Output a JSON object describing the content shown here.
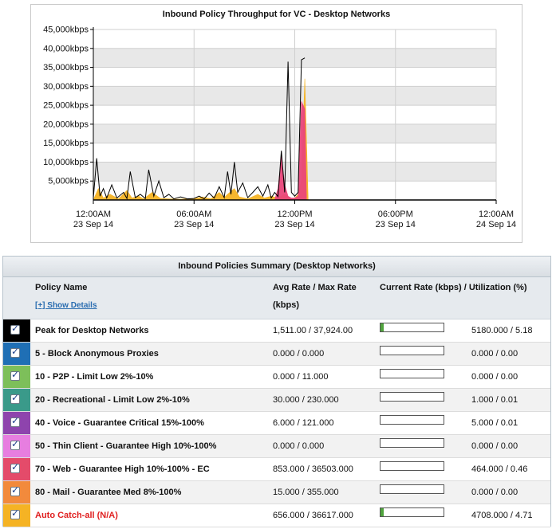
{
  "chart": {
    "title": "Inbound Policy Throughput for VC - Desktop Networks",
    "y_ticks": [
      "5,000kbps",
      "10,000kbps",
      "15,000kbps",
      "20,000kbps",
      "25,000kbps",
      "30,000kbps",
      "35,000kbps",
      "40,000kbps",
      "45,000kbps"
    ],
    "x_ticks": [
      {
        "time": "12:00AM",
        "date": "23 Sep 14"
      },
      {
        "time": "06:00AM",
        "date": "23 Sep 14"
      },
      {
        "time": "12:00PM",
        "date": "23 Sep 14"
      },
      {
        "time": "06:00PM",
        "date": "23 Sep 14"
      },
      {
        "time": "12:00AM",
        "date": "24 Sep 14"
      }
    ]
  },
  "chart_data": {
    "type": "area",
    "title": "Inbound Policy Throughput for VC - Desktop Networks",
    "xlabel": "",
    "ylabel": "",
    "x_unit": "hours since 12:00AM 23 Sep 14",
    "xlim": [
      0,
      24
    ],
    "ylim": [
      0,
      45000
    ],
    "grid": true,
    "legend": "none",
    "series": [
      {
        "name": "Peak for Desktop Networks",
        "color": "#000000",
        "kind": "line",
        "points": [
          [
            0,
            500
          ],
          [
            0.2,
            11000
          ],
          [
            0.4,
            1000
          ],
          [
            0.6,
            3000
          ],
          [
            0.8,
            500
          ],
          [
            1.1,
            4000
          ],
          [
            1.4,
            500
          ],
          [
            1.8,
            2000
          ],
          [
            2.0,
            400
          ],
          [
            2.2,
            7500
          ],
          [
            2.5,
            600
          ],
          [
            2.8,
            1500
          ],
          [
            3.1,
            400
          ],
          [
            3.3,
            8000
          ],
          [
            3.6,
            1000
          ],
          [
            3.9,
            5000
          ],
          [
            4.2,
            600
          ],
          [
            4.5,
            1500
          ],
          [
            4.8,
            300
          ],
          [
            5.2,
            800
          ],
          [
            5.6,
            300
          ],
          [
            6.0,
            400
          ],
          [
            6.3,
            1000
          ],
          [
            6.6,
            300
          ],
          [
            6.9,
            1800
          ],
          [
            7.2,
            500
          ],
          [
            7.5,
            3500
          ],
          [
            7.8,
            600
          ],
          [
            8.0,
            7500
          ],
          [
            8.2,
            1500
          ],
          [
            8.4,
            10000
          ],
          [
            8.6,
            2000
          ],
          [
            8.9,
            4500
          ],
          [
            9.2,
            600
          ],
          [
            9.5,
            2000
          ],
          [
            9.8,
            3500
          ],
          [
            10.1,
            1000
          ],
          [
            10.4,
            4000
          ],
          [
            10.6,
            500
          ],
          [
            10.8,
            2000
          ],
          [
            11.0,
            900
          ],
          [
            11.2,
            13000
          ],
          [
            11.4,
            2000
          ],
          [
            11.6,
            36500
          ],
          [
            11.8,
            2000
          ],
          [
            12.0,
            1000
          ],
          [
            12.2,
            2000
          ],
          [
            12.4,
            37000
          ],
          [
            12.6,
            37500
          ]
        ]
      },
      {
        "name": "Auto Catch-all (N/A)",
        "color": "#f5b324",
        "kind": "area",
        "points": [
          [
            0,
            0
          ],
          [
            0.3,
            3000
          ],
          [
            0.6,
            500
          ],
          [
            1.0,
            1500
          ],
          [
            1.5,
            300
          ],
          [
            2.0,
            2500
          ],
          [
            2.3,
            500
          ],
          [
            2.7,
            1000
          ],
          [
            3.0,
            300
          ],
          [
            3.5,
            2000
          ],
          [
            4.0,
            400
          ],
          [
            5.0,
            200
          ],
          [
            6.0,
            300
          ],
          [
            6.5,
            800
          ],
          [
            7.0,
            300
          ],
          [
            7.5,
            2000
          ],
          [
            7.8,
            600
          ],
          [
            8.0,
            1500
          ],
          [
            8.4,
            3000
          ],
          [
            8.7,
            800
          ],
          [
            9.2,
            300
          ],
          [
            9.8,
            1500
          ],
          [
            10.2,
            500
          ],
          [
            10.6,
            1000
          ],
          [
            11.0,
            500
          ],
          [
            11.4,
            1500
          ],
          [
            11.8,
            300
          ],
          [
            12.0,
            500
          ],
          [
            12.2,
            1500
          ],
          [
            12.4,
            5000
          ],
          [
            12.6,
            32000
          ],
          [
            12.8,
            0
          ]
        ]
      },
      {
        "name": "70 - Web - Guarantee High 10%-100% - EC",
        "color": "#e9467a",
        "kind": "area",
        "points": [
          [
            10.8,
            0
          ],
          [
            11.0,
            3000
          ],
          [
            11.2,
            11500
          ],
          [
            11.4,
            4000
          ],
          [
            11.6,
            1000
          ],
          [
            11.8,
            500
          ],
          [
            12.0,
            500
          ],
          [
            12.2,
            1000
          ],
          [
            12.4,
            26000
          ],
          [
            12.6,
            24000
          ],
          [
            12.7,
            0
          ]
        ]
      }
    ]
  },
  "summary": {
    "title": "Inbound Policies Summary (Desktop Networks)",
    "col_policy": "Policy Name",
    "show_details": "[+] Show Details",
    "col_avg_line1": "Avg Rate / Max Rate",
    "col_avg_line2": "(kbps)",
    "col_current": "Current Rate (kbps) / Utilization (%)",
    "rows": [
      {
        "name": "Peak for Desktop Networks",
        "avg": "1,511.00 / 37,924.00",
        "current": "5180.000 / 5.18",
        "util": 5.18,
        "color": "#000000",
        "red": false
      },
      {
        "name": "5 - Block Anonymous Proxies",
        "avg": "0.000 / 0.000",
        "current": "0.000 / 0.00",
        "util": 0,
        "color": "#1f6fb5",
        "red": false
      },
      {
        "name": "10 - P2P - Limit Low 2%-10%",
        "avg": "0.000 / 11.000",
        "current": "0.000 / 0.00",
        "util": 0,
        "color": "#7dbf5a",
        "red": false
      },
      {
        "name": "20 - Recreational - Limit Low 2%-10%",
        "avg": "30.000 / 230.000",
        "current": "1.000 / 0.01",
        "util": 0.01,
        "color": "#3a9a8a",
        "red": false
      },
      {
        "name": "40 - Voice - Guarantee Critical 15%-100%",
        "avg": "6.000 / 121.000",
        "current": "5.000 / 0.01",
        "util": 0.01,
        "color": "#8e44ad",
        "red": false
      },
      {
        "name": "50 - Thin Client - Guarantee High 10%-100%",
        "avg": "0.000 / 0.000",
        "current": "0.000 / 0.00",
        "util": 0,
        "color": "#e77ee0",
        "red": false
      },
      {
        "name": "70 - Web - Guarantee High 10%-100% - EC",
        "avg": "853.000 / 36503.000",
        "current": "464.000 / 0.46",
        "util": 0.46,
        "color": "#e44b6a",
        "red": false
      },
      {
        "name": "80 - Mail - Guarantee Med 8%-100%",
        "avg": "15.000 / 355.000",
        "current": "0.000 / 0.00",
        "util": 0,
        "color": "#f28a3c",
        "red": false
      },
      {
        "name": "Auto Catch-all (N/A)",
        "avg": "656.000 / 36617.000",
        "current": "4708.000 / 4.71",
        "util": 4.71,
        "color": "#f5b324",
        "red": true
      }
    ]
  }
}
